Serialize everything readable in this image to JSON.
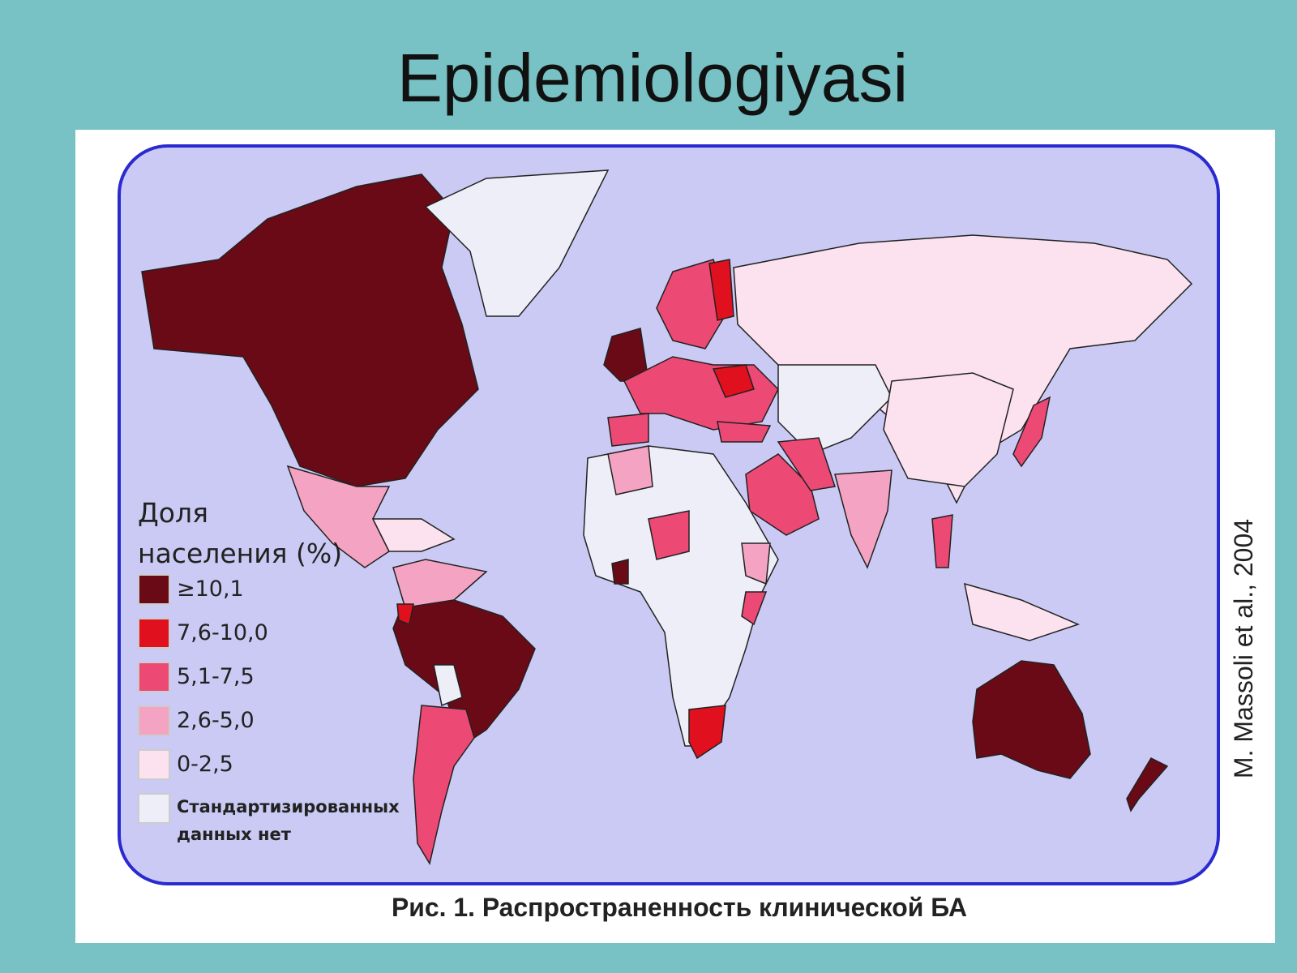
{
  "header": {
    "title": "Epidemiologiyasi"
  },
  "map": {
    "legend_title": [
      "Доля",
      "населения (%)"
    ],
    "legend": [
      {
        "label": "≥10,1",
        "color": "#6a0a16"
      },
      {
        "label": "7,6-10,0",
        "color": "#e0101e"
      },
      {
        "label": "5,1-7,5",
        "color": "#ec4a74"
      },
      {
        "label": "2,6-5,0",
        "color": "#f4a4c2"
      },
      {
        "label": "0-2,5",
        "color": "#fbe2ee"
      },
      {
        "label": "Стандартизированных данных нет",
        "color": "#eeeef8"
      }
    ],
    "caption": "Рис. 1. Распространенность клинической БА",
    "credit": "M. Massoli et al., 2004"
  }
}
